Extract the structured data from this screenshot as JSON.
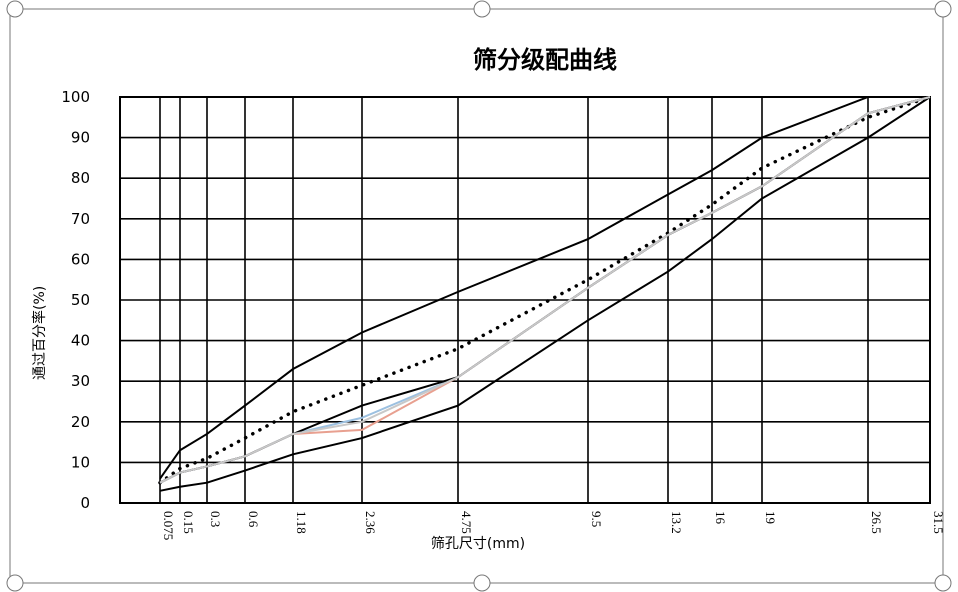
{
  "chart_data": {
    "type": "line",
    "title": "筛分级配曲线",
    "x_label": "筛孔尺寸(mm)",
    "y_label": "通过百分率(%)",
    "categories": [
      "0.075",
      "0.15",
      "0.3",
      "0.6",
      "1.18",
      "2.36",
      "4.75",
      "9.5",
      "13.2",
      "16",
      "19",
      "26.5",
      "31.5"
    ],
    "ylim": [
      0,
      100
    ],
    "yticks": [
      0,
      10,
      20,
      30,
      40,
      50,
      60,
      70,
      80,
      90,
      100
    ],
    "grid": true,
    "series": [
      {
        "color": "#000000",
        "style": "solid",
        "values": [
          6,
          13,
          17,
          24,
          33,
          42,
          52,
          65,
          76,
          82,
          90,
          100,
          100
        ]
      },
      {
        "color": "#000000",
        "style": "solid",
        "values": [
          3,
          4,
          5,
          8,
          12,
          16,
          24,
          45,
          57,
          65,
          75,
          90,
          100
        ]
      },
      {
        "color": "#000000",
        "style": "dotted",
        "values": [
          5,
          8.5,
          11,
          16,
          22.5,
          29,
          38,
          55,
          66.5,
          73.5,
          82.5,
          95,
          100
        ]
      },
      {
        "color": "#e8a090",
        "style": "solid",
        "values": [
          5,
          7.5,
          9,
          11.5,
          17,
          18,
          31,
          53,
          66,
          71.5,
          78,
          96,
          100
        ]
      },
      {
        "color": "#9cc0e0",
        "style": "solid",
        "values": [
          5,
          7.5,
          9,
          11.5,
          17,
          21,
          31,
          53,
          66,
          71.5,
          78,
          96,
          100
        ]
      },
      {
        "color": "#000000",
        "style": "solid",
        "values": [
          5,
          7.5,
          9,
          11.5,
          17,
          24,
          31,
          53,
          66,
          71.5,
          78,
          96,
          100
        ]
      },
      {
        "color": "#c8c8c8",
        "style": "solid",
        "values": [
          5,
          7.5,
          9,
          11.5,
          17,
          20,
          31,
          53,
          66,
          71.5,
          78,
          96,
          100
        ]
      }
    ]
  }
}
